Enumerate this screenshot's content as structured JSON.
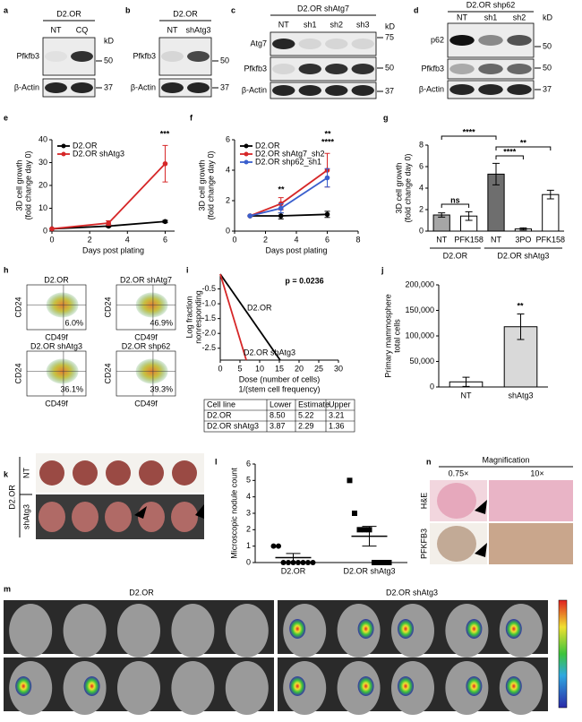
{
  "panel_labels": [
    "a",
    "b",
    "c",
    "d",
    "e",
    "f",
    "g",
    "h",
    "i",
    "j",
    "k",
    "l",
    "m",
    "n"
  ],
  "blots": [
    {
      "title": "D2.OR",
      "lanes": [
        "NT",
        "CQ"
      ],
      "rows": [
        "Pfkfb3",
        "β-Actin"
      ],
      "markers": [
        "kD",
        "50",
        "37"
      ]
    },
    {
      "title": "D2.OR",
      "lanes": [
        "NT",
        "shAtg3"
      ],
      "rows": [
        "Pfkfb3",
        "β-Actin"
      ],
      "markers": [
        "50",
        "37"
      ]
    },
    {
      "title": "D2.OR shAtg7",
      "lanes": [
        "NT",
        "sh1",
        "sh2",
        "sh3"
      ],
      "rows": [
        "Atg7",
        "Pfkfb3",
        "β-Actin"
      ],
      "markers": [
        "kD",
        "75",
        "50",
        "37"
      ]
    },
    {
      "title": "D2.OR shp62",
      "lanes": [
        "NT",
        "sh1",
        "sh2"
      ],
      "rows": [
        "p62",
        "Pfkfb3",
        "β-Actin"
      ],
      "markers": [
        "kD",
        "50",
        "50",
        "37"
      ]
    }
  ],
  "chart_data": [
    {
      "type": "line",
      "x_label": "Days post plating",
      "y_label": [
        "3D cell growth",
        "(fold change day 0)"
      ],
      "xlim": [
        0,
        6.5
      ],
      "xticks": [
        0,
        2,
        4,
        6
      ],
      "ylim": [
        0,
        40
      ],
      "yticks": [
        0,
        10,
        20,
        30,
        40
      ],
      "legend": "upper left",
      "annotations": [
        {
          "text": "***",
          "color": "#000000"
        }
      ],
      "x": [
        0,
        3,
        6
      ],
      "series": [
        {
          "name": "D2.OR",
          "color": "#000000",
          "values": [
            1,
            2.2,
            4.2
          ],
          "errors": [
            0,
            0.5,
            0.5
          ]
        },
        {
          "name": "D2.OR shAtg3",
          "color": "#d62728",
          "values": [
            1,
            3.5,
            29.5
          ],
          "errors": [
            0,
            1,
            8
          ]
        }
      ]
    },
    {
      "type": "line",
      "x_label": "Days post plating",
      "y_label": [
        "3D cell growth",
        "(fold change day 0)"
      ],
      "xlim": [
        0,
        8
      ],
      "xticks": [
        0,
        2,
        4,
        6,
        8
      ],
      "ylim": [
        0,
        6
      ],
      "yticks": [
        0,
        2,
        4,
        6
      ],
      "legend": "upper left",
      "annotations": [
        {
          "text": "**",
          "color": "#3a5fcd"
        },
        {
          "text": "**",
          "color": "#d62728"
        },
        {
          "text": "****",
          "color": "#3a5fcd"
        }
      ],
      "x": [
        1,
        3,
        6
      ],
      "series": [
        {
          "name": "D2.OR",
          "color": "#000000",
          "values": [
            1,
            1,
            1.1
          ],
          "errors": [
            0,
            0.2,
            0.2
          ]
        },
        {
          "name": "D2.OR shAtg7_sh2",
          "color": "#d62728",
          "values": [
            1,
            1.8,
            4.0
          ],
          "errors": [
            0,
            0.4,
            1.1
          ]
        },
        {
          "name": "D2.OR shp62_sh1",
          "color": "#3a5fcd",
          "values": [
            1,
            1.5,
            3.5
          ],
          "errors": [
            0,
            0.3,
            0.6
          ]
        }
      ]
    },
    {
      "type": "bar",
      "y_label": [
        "3D cell growth",
        "(fold change day 0)"
      ],
      "categories": [
        "NT",
        "PFK158",
        "NT",
        "3PO",
        "PFK158"
      ],
      "group_labels": [
        "D2.OR",
        "D2.OR shAtg3"
      ],
      "values": [
        1.5,
        1.4,
        5.3,
        0.2,
        3.4
      ],
      "errors": [
        0.2,
        0.4,
        1.0,
        0.1,
        0.4
      ],
      "colors": [
        "#a6a6a6",
        "#ffffff",
        "#6e6e6e",
        "#ffffff",
        "#ffffff"
      ],
      "ylim": [
        0,
        8
      ],
      "yticks": [
        0,
        2,
        4,
        6,
        8
      ],
      "annotations": [
        {
          "text": "****"
        },
        {
          "text": "**"
        },
        {
          "text": "****"
        },
        {
          "text": "ns"
        }
      ]
    },
    {
      "type": "line",
      "y_label": [
        "Log fraction",
        "nonresponding"
      ],
      "x_label": [
        "Dose (number of cells)",
        "1/(stem cell frequency)"
      ],
      "xlim": [
        0,
        30
      ],
      "xticks": [
        0,
        5,
        10,
        15,
        20,
        25,
        30
      ],
      "ylim": [
        -2.9,
        0
      ],
      "yticks": [
        -0.5,
        {
          "value": -1,
          "label": "-1.0"
        },
        -1.5,
        {
          "value": -2,
          "label": "-2.0"
        },
        -2.5
      ],
      "markers": false,
      "annotations": [
        {
          "text": "p = 0.0236",
          "color": "#000000"
        }
      ],
      "series": [
        {
          "name": "D2.OR",
          "color": "#000000",
          "x": [
            0,
            15.2
          ],
          "values": [
            0,
            -2.9
          ]
        },
        {
          "name": "D2.OR shAtg3",
          "color": "#d62728",
          "x": [
            0,
            6.6
          ],
          "values": [
            0,
            -2.9
          ]
        }
      ]
    },
    {
      "type": "bar",
      "y_label": [
        "Primary mammosphere",
        "total cells"
      ],
      "categories": [
        "NT",
        "shAtg3"
      ],
      "values": [
        10000,
        118000
      ],
      "errors": [
        9000,
        25000
      ],
      "colors": [
        "#ffffff",
        "#d9d9d9"
      ],
      "ylim": [
        0,
        200000
      ],
      "yticks": [
        0,
        {
          "value": 50000,
          "label": "50,000"
        },
        {
          "value": 100000,
          "label": "100,000"
        },
        {
          "value": 150000,
          "label": "150,000"
        },
        {
          "value": 200000,
          "label": "200,000"
        }
      ],
      "annotations": [
        {
          "text": "**",
          "color": "#000000"
        }
      ]
    },
    {
      "type": "dot",
      "y_label": "Microscopic nodule count",
      "categories": [
        "D2.OR",
        "D2.OR shAtg3"
      ],
      "points": [
        [
          1,
          1,
          0,
          0,
          0,
          0,
          0,
          0,
          0
        ],
        [
          5,
          3,
          2,
          2,
          2,
          0,
          0,
          0,
          0
        ]
      ],
      "markers": [
        "circle",
        "square"
      ],
      "means": [
        0.3,
        1.6
      ],
      "errors": [
        0.25,
        0.6
      ],
      "ylim": [
        0,
        6
      ],
      "yticks": [
        0,
        1,
        2,
        3,
        4,
        5,
        6
      ]
    }
  ],
  "table_i": {
    "header": [
      "Cell line",
      "Lower",
      "Estimate",
      "Upper"
    ],
    "rows": [
      [
        "D2.OR",
        "8.50",
        "5.22",
        "3.21"
      ],
      [
        "D2.OR shAtg3",
        "3.87",
        "2.29",
        "1.36"
      ]
    ]
  },
  "flow_h": {
    "y_label": "CD24",
    "x_label": "CD49f",
    "plots": [
      {
        "title": "D2.OR",
        "percent": "6.0%"
      },
      {
        "title": "D2.OR shAtg7",
        "percent": "46.9%"
      },
      {
        "title": "D2.OR shAtg3",
        "percent": "36.1%"
      },
      {
        "title": "D2.OR shp62",
        "percent": "39.3%"
      }
    ]
  },
  "panel_k": {
    "group": "D2.OR",
    "rows": [
      "NT",
      "shAtg3"
    ]
  },
  "panel_n": {
    "title": "Magnification",
    "columns": [
      "0.75×",
      "10×"
    ],
    "rows": [
      "H&E",
      "PFKFB3"
    ]
  },
  "panel_m": {
    "groups": [
      "D2.OR",
      "D2.OR shAtg3"
    ]
  }
}
